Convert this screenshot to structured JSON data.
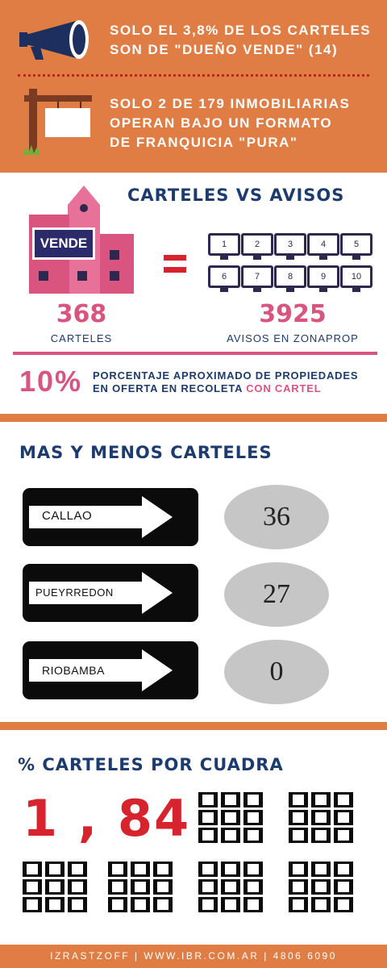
{
  "top": {
    "fact1": "SOLO EL 3,8% DE LOS CARTELES\nSON DE \"DUEÑO VENDE\" (14)",
    "fact2": "SOLO 2 DE 179 INMOBILIARIAS\nOPERAN BAJO UN FORMATO\nDE FRANQUICIA \"PURA\"",
    "megaphone_icon": "megaphone-icon",
    "sign_post_icon": "sign-post-icon"
  },
  "carteles_vs_avisos": {
    "title": "CARTELES VS AVISOS",
    "building_sign": "VENDE",
    "equals": "=",
    "monitors": [
      "1",
      "2",
      "3",
      "4",
      "5",
      "6",
      "7",
      "8",
      "9",
      "10"
    ],
    "left_number": "368",
    "left_label": "CARTELES",
    "right_number": "3925",
    "right_label": "AVISOS EN ZONAPROP",
    "percent": "10%",
    "percent_text_line1": "PORCENTAJE APROXIMADO DE PROPIEDADES",
    "percent_text_line2": "EN OFERTA EN RECOLETA",
    "percent_highlight": "CON CARTEL"
  },
  "mas_y_menos": {
    "title": "MAS Y MENOS CARTELES",
    "streets": [
      {
        "name": "CALLAO",
        "value": "36"
      },
      {
        "name": "PUEYRREDON",
        "value": "27"
      },
      {
        "name": "RIOBAMBA",
        "value": "0"
      }
    ]
  },
  "por_cuadra": {
    "title": "% CARTELES POR CUADRA",
    "value": "1 , 84"
  },
  "footer": {
    "text": "IZRASTZOFF | WWW.IBR.COM.AR | 4806 6090"
  },
  "colors": {
    "orange": "#e07d45",
    "navy": "#1c3b6e",
    "pink": "#d9547f",
    "red": "#d7232d"
  }
}
